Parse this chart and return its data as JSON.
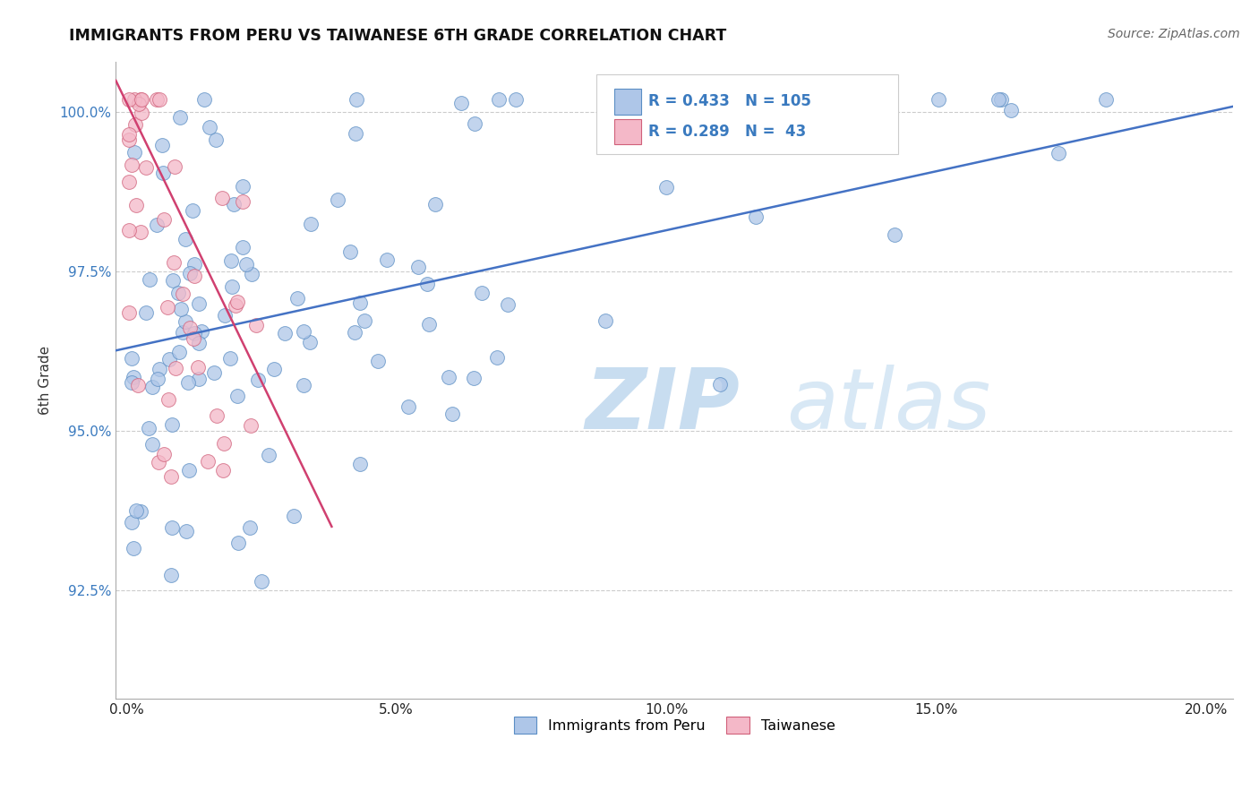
{
  "title": "IMMIGRANTS FROM PERU VS TAIWANESE 6TH GRADE CORRELATION CHART",
  "source": "Source: ZipAtlas.com",
  "xlabel_ticks": [
    "0.0%",
    "5.0%",
    "10.0%",
    "15.0%",
    "20.0%"
  ],
  "xlabel_tick_vals": [
    0.0,
    0.05,
    0.1,
    0.15,
    0.2
  ],
  "ylabel_ticks": [
    "92.5%",
    "95.0%",
    "97.5%",
    "100.0%"
  ],
  "ylabel_tick_vals": [
    0.925,
    0.95,
    0.975,
    1.0
  ],
  "xlim": [
    -0.002,
    0.205
  ],
  "ylim": [
    0.908,
    1.008
  ],
  "blue_color": "#aec6e8",
  "blue_edge_color": "#5b8ec4",
  "pink_color": "#f4b8c8",
  "pink_edge_color": "#d0607a",
  "blue_line_color": "#4472c4",
  "pink_line_color": "#d04070",
  "legend_blue_r": "0.433",
  "legend_blue_n": "105",
  "legend_pink_r": "0.289",
  "legend_pink_n": "43",
  "watermark_zip": "ZIP",
  "watermark_atlas": "atlas"
}
